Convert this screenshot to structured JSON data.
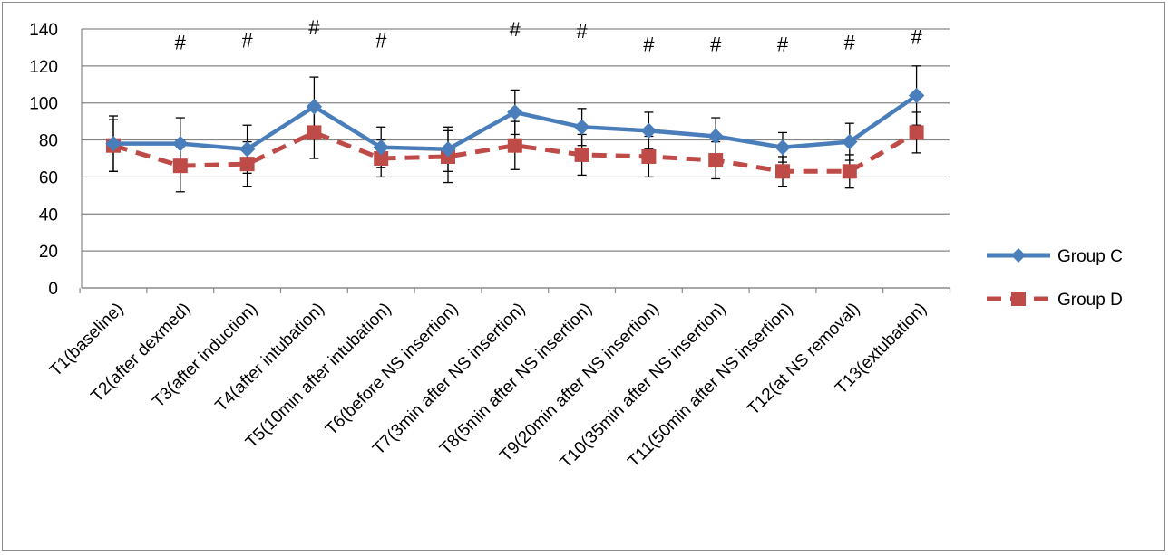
{
  "chart_data": {
    "type": "line",
    "title": "",
    "xlabel": "",
    "ylabel": "",
    "ylim": [
      0,
      140
    ],
    "yticks": [
      0,
      20,
      40,
      60,
      80,
      100,
      120,
      140
    ],
    "grid": "horizontal",
    "legend_position": "right",
    "categories": [
      "T1(baseline)",
      "T2(after dexmed)",
      "T3(after induction)",
      "T4(after intubation)",
      "T5(10min after intubation)",
      "T6(before NS insertion)",
      "T7(3min after NS insertion)",
      "T8(5min after NS insertion)",
      "T9(20min after NS insertion)",
      "T10(35min after NS insertion)",
      "T11(50min after NS insertion)",
      "T12(at NS removal)",
      "T13(extubation)"
    ],
    "series": [
      {
        "name": "Group C",
        "color": "#4a7ebb",
        "marker": "diamond",
        "line_style": "solid",
        "values": [
          78,
          78,
          75,
          98,
          76,
          75,
          95,
          87,
          85,
          82,
          76,
          79,
          104
        ],
        "error": [
          15,
          14,
          13,
          16,
          11,
          12,
          12,
          10,
          10,
          10,
          8,
          10,
          16
        ]
      },
      {
        "name": "Group D",
        "color": "#be4b48",
        "marker": "square",
        "line_style": "dashed",
        "values": [
          77,
          66,
          67,
          84,
          70,
          71,
          77,
          72,
          71,
          69,
          63,
          63,
          84
        ],
        "error": [
          14,
          14,
          12,
          14,
          10,
          14,
          13,
          11,
          11,
          10,
          8,
          9,
          11
        ]
      }
    ],
    "annotations": {
      "symbol": "#",
      "categories_marked": [
        1,
        2,
        3,
        4,
        6,
        7,
        8,
        9,
        10,
        11,
        12
      ],
      "heights": [
        129,
        130,
        137,
        130,
        136,
        135,
        128,
        128,
        128,
        129,
        132
      ]
    }
  }
}
